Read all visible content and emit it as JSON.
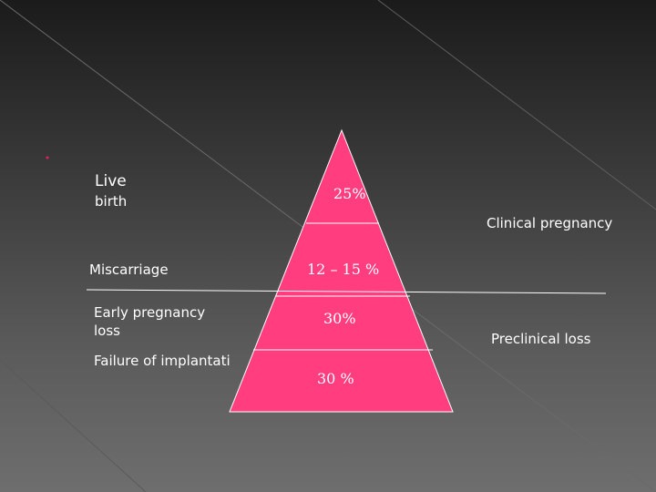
{
  "slide": {
    "bullet": "•",
    "left_labels": {
      "live_birth_line1": "Live",
      "live_birth_line2": "birth",
      "miscarriage": "Miscarriage",
      "early_loss_line1": "Early pregnancy",
      "early_loss_line2": "loss",
      "failure": "Failure of implantati"
    },
    "pyramid_levels": [
      "25%",
      "12 – 15 %",
      "30%",
      "30 %"
    ],
    "right_labels": {
      "clinical": "Clinical pregnancy",
      "preclinical": "Preclinical loss"
    },
    "colors": {
      "pyramid": "#ff3d7f",
      "separator": "#ffffff",
      "accent": "#e0225a"
    }
  }
}
